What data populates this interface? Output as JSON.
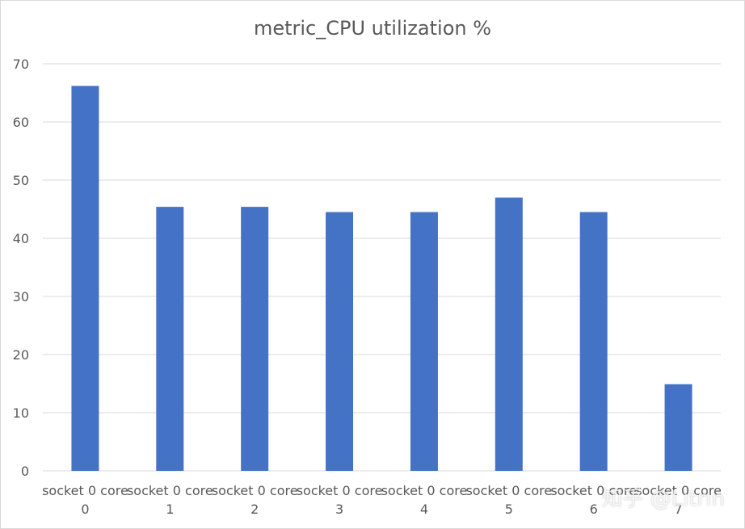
{
  "chart_data": {
    "type": "bar",
    "title": "metric_CPU utilization %",
    "categories": [
      [
        "socket 0 core",
        "0"
      ],
      [
        "socket 0 core",
        "1"
      ],
      [
        "socket 0 core",
        "2"
      ],
      [
        "socket 0 core",
        "3"
      ],
      [
        "socket 0 core",
        "4"
      ],
      [
        "socket 0 core",
        "5"
      ],
      [
        "socket 0 core",
        "6"
      ],
      [
        "socket 0 core",
        "7"
      ]
    ],
    "values": [
      66.2,
      45.4,
      45.4,
      44.5,
      44.5,
      47.0,
      44.5,
      14.9
    ],
    "xlabel": "",
    "ylabel": "",
    "ylim": [
      0,
      70
    ],
    "yticks": [
      0,
      10,
      20,
      30,
      40,
      50,
      60,
      70
    ],
    "grid": true,
    "bar_color": "#4472C4",
    "grid_color": "#d9d9d9"
  },
  "watermark": "知乎 @Litrin"
}
